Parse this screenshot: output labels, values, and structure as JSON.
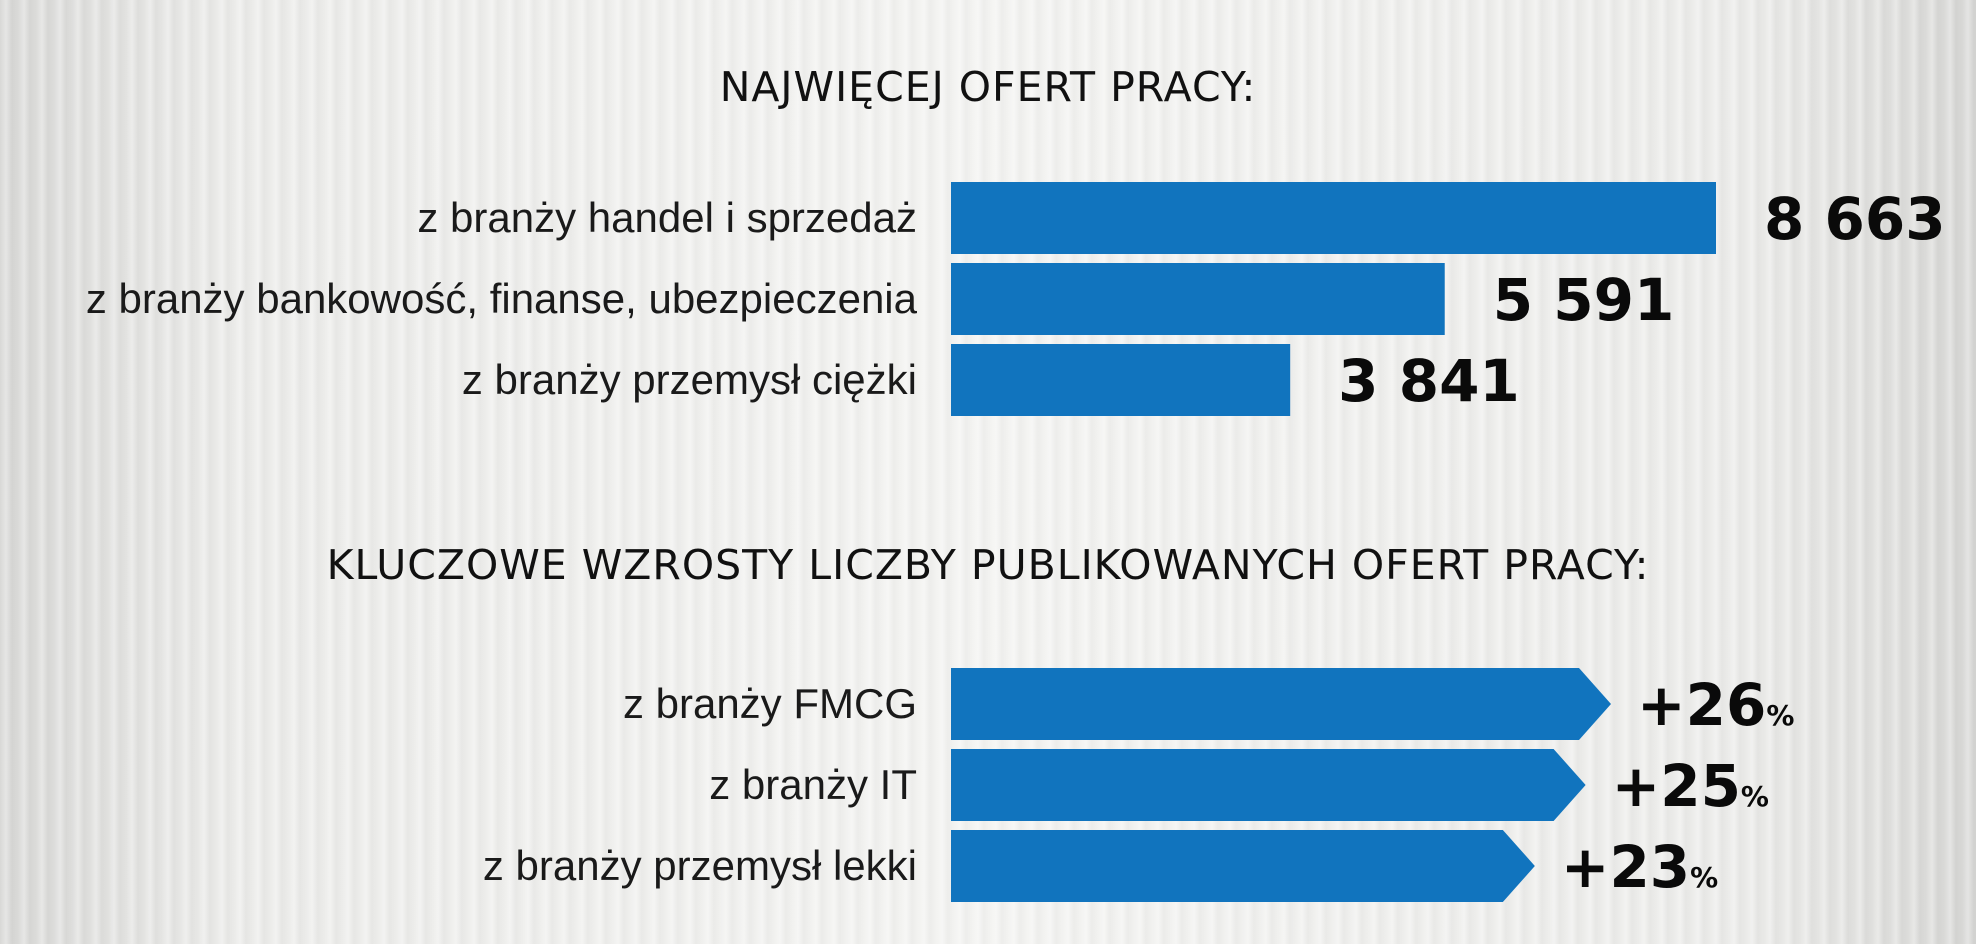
{
  "chart_data": [
    {
      "type": "bar",
      "title": "NAJWIĘCEJ OFERT PRACY:",
      "categories": [
        "z branży handel i sprzedaż",
        "z branży bankowość, finanse, ubezpieczenia",
        "z branży przemysł ciężki"
      ],
      "values": [
        8663,
        5591,
        3841
      ],
      "value_labels": [
        "8 663",
        "5 591",
        "3 841"
      ],
      "orientation": "horizontal",
      "bar_color": "#1174be",
      "xlim": [
        0,
        8663
      ]
    },
    {
      "type": "bar",
      "title": "KLUCZOWE WZROSTY LICZBY PUBLIKOWANYCH OFERT PRACY:",
      "categories": [
        "z branży FMCG",
        "z branży IT",
        "z branży przemysł lekki"
      ],
      "values": [
        26,
        25,
        23
      ],
      "value_labels": [
        "+26",
        "+25",
        "+23"
      ],
      "unit": "%",
      "orientation": "horizontal",
      "bar_color": "#1174be",
      "bar_shape": "arrow"
    }
  ]
}
